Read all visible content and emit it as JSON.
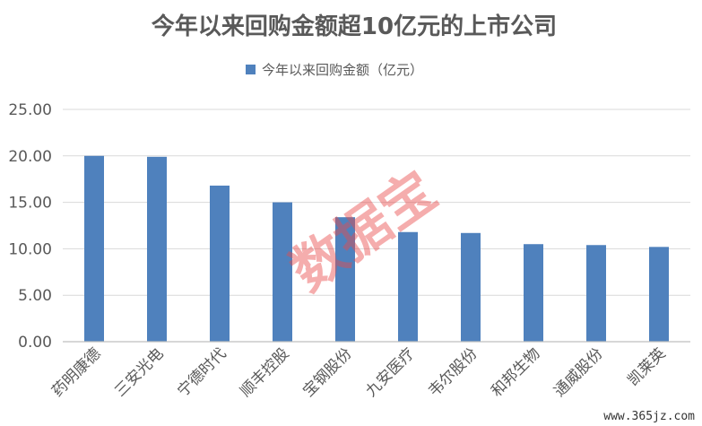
{
  "chart_data": {
    "type": "bar",
    "title": "今年以来回购金额超10亿元的上市公司",
    "xlabel": "",
    "ylabel": "",
    "categories": [
      "药明康德",
      "三安光电",
      "宁德时代",
      "顺丰控股",
      "宝钢股份",
      "九安医疗",
      "韦尔股份",
      "和邦生物",
      "通威股份",
      "凯莱英"
    ],
    "series": [
      {
        "name": "今年以来回购金额（亿元）",
        "values": [
          20.0,
          19.9,
          16.8,
          15.0,
          13.4,
          11.8,
          11.7,
          10.5,
          10.4,
          10.2
        ]
      }
    ],
    "yticks": [
      "0.00",
      "5.00",
      "10.00",
      "15.00",
      "20.00",
      "25.00"
    ],
    "ylim": [
      0,
      25
    ],
    "grid": true,
    "legend_position": "top",
    "bar_color": "#4f81bd"
  },
  "watermark_text": "数据宝",
  "site_text": "www.365jz.com"
}
